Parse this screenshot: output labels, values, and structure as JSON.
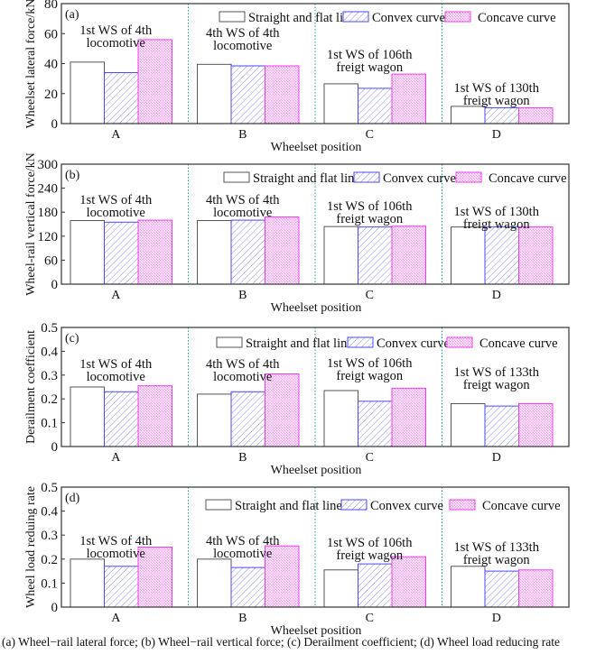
{
  "caption": "(a) Wheel−rail lateral force; (b) Wheel−rail vertical force; (c) Derailment coefficient; (d) Wheel load reducing rate",
  "colors": {
    "straight": "#555555",
    "convex": "#4a4af0",
    "concave": "#f03cf0",
    "divider": "#1a9a9a",
    "frame": "#333333"
  },
  "chart_data": [
    {
      "type": "bar",
      "panel": "(a)",
      "title": "",
      "xlabel": "Wheelset position",
      "ylabel": "Wheelset lateral force/kN",
      "ylim": [
        0,
        80
      ],
      "yticks": [
        "0",
        "20",
        "40",
        "60",
        "80"
      ],
      "ytick_values": [
        0,
        20,
        40,
        60,
        80
      ],
      "categories": [
        "A",
        "B",
        "C",
        "D"
      ],
      "annotations": [
        [
          "1st WS of 4th",
          "locomotive"
        ],
        [
          "4th WS of 4th",
          "locomotive"
        ],
        [
          "1st WS of 106th",
          "freigt wagon"
        ],
        [
          "1st WS of 130th",
          "freigt wagon"
        ]
      ],
      "legend": "top-right",
      "grid": false,
      "series": [
        {
          "name": "Straight and flat line",
          "values": [
            41,
            39.5,
            26.5,
            11.5
          ]
        },
        {
          "name": "Convex curve",
          "values": [
            34,
            38.5,
            23.5,
            10.5
          ]
        },
        {
          "name": "Concave curve",
          "values": [
            56,
            38.5,
            33,
            10.5
          ]
        }
      ]
    },
    {
      "type": "bar",
      "panel": "(b)",
      "title": "",
      "xlabel": "Wheelset position",
      "ylabel": "Wheel-rail vertical force/kN",
      "ylim": [
        0,
        300
      ],
      "yticks": [
        "0",
        "60",
        "120",
        "180",
        "240",
        "300"
      ],
      "ytick_values": [
        0,
        60,
        120,
        180,
        240,
        300
      ],
      "categories": [
        "A",
        "B",
        "C",
        "D"
      ],
      "annotations": [
        [
          "1st WS of 4th",
          "locomotive"
        ],
        [
          "4th WS of 4th",
          "locomotive"
        ],
        [
          "1st WS of 106th",
          "freigt wagon"
        ],
        [
          "1st WS of 130th",
          "freigt wagon"
        ]
      ],
      "legend": "top-right",
      "grid": false,
      "series": [
        {
          "name": "Straight and flat line",
          "values": [
            159,
            159,
            144,
            143
          ]
        },
        {
          "name": "Convex curve",
          "values": [
            155,
            160,
            143,
            143
          ]
        },
        {
          "name": "Concave curve",
          "values": [
            160,
            168,
            145,
            143
          ]
        }
      ]
    },
    {
      "type": "bar",
      "panel": "(c)",
      "title": "",
      "xlabel": "Wheelset position",
      "ylabel": "Derailment coefficient",
      "ylim": [
        0,
        0.5
      ],
      "yticks": [
        "0",
        "0.1",
        "0.2",
        "0.3",
        "0.4",
        "0.5"
      ],
      "ytick_values": [
        0,
        0.1,
        0.2,
        0.3,
        0.4,
        0.5
      ],
      "categories": [
        "A",
        "B",
        "C",
        "D"
      ],
      "annotations": [
        [
          "1st WS of 4th",
          "locomotive"
        ],
        [
          "4th WS of 4th",
          "locomotive"
        ],
        [
          "1st WS of 106th",
          "freigt wagon"
        ],
        [
          "1st WS of 133th",
          "freigt wagon"
        ]
      ],
      "legend": "top-right",
      "grid": false,
      "series": [
        {
          "name": "Straight and flat line",
          "values": [
            0.25,
            0.22,
            0.235,
            0.18
          ]
        },
        {
          "name": "Convex curve",
          "values": [
            0.23,
            0.23,
            0.19,
            0.17
          ]
        },
        {
          "name": "Concave curve",
          "values": [
            0.255,
            0.305,
            0.245,
            0.18
          ]
        }
      ]
    },
    {
      "type": "bar",
      "panel": "(d)",
      "title": "",
      "xlabel": "Wheelset position",
      "ylabel": "Wheel load reduing rate",
      "ylim": [
        0,
        0.5
      ],
      "yticks": [
        "0",
        "0.1",
        "0.2",
        "0.3",
        "0.4",
        "0.5"
      ],
      "ytick_values": [
        0,
        0.1,
        0.2,
        0.3,
        0.4,
        0.5
      ],
      "categories": [
        "A",
        "B",
        "C",
        "D"
      ],
      "annotations": [
        [
          "1st WS of 4th",
          "locomotive"
        ],
        [
          "4th WS of 4th",
          "locomotive"
        ],
        [
          "1st WS of 106th",
          "freigt wagon"
        ],
        [
          "1st WS of 133th",
          "freigt wagon"
        ]
      ],
      "legend": "top-right",
      "grid": false,
      "series": [
        {
          "name": "Straight and flat line",
          "values": [
            0.2,
            0.2,
            0.155,
            0.17
          ]
        },
        {
          "name": "Convex curve",
          "values": [
            0.17,
            0.165,
            0.18,
            0.15
          ]
        },
        {
          "name": "Concave curve",
          "values": [
            0.25,
            0.255,
            0.21,
            0.155
          ]
        }
      ]
    }
  ]
}
